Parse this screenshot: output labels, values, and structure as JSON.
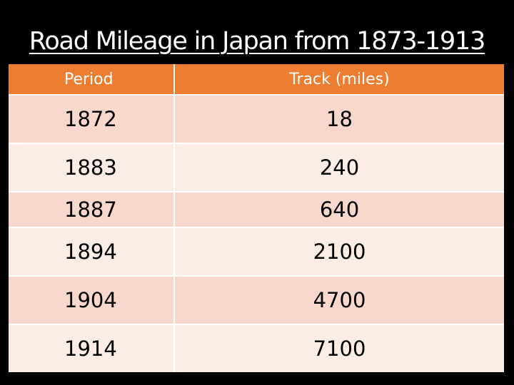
{
  "title": "Road Mileage in Japan from 1873-1913",
  "table": {
    "headers": [
      "Period",
      "Track (miles)"
    ],
    "rows": [
      [
        "1872",
        "18"
      ],
      [
        "1883",
        "240"
      ],
      [
        "1887",
        "640"
      ],
      [
        "1894",
        "2100"
      ],
      [
        "1904",
        "4700"
      ],
      [
        "1914",
        "7100"
      ]
    ]
  },
  "colors": {
    "background": "#000000",
    "header": "#ED7D31",
    "row_odd": "#F8D7CC",
    "row_even": "#FCECE6"
  }
}
